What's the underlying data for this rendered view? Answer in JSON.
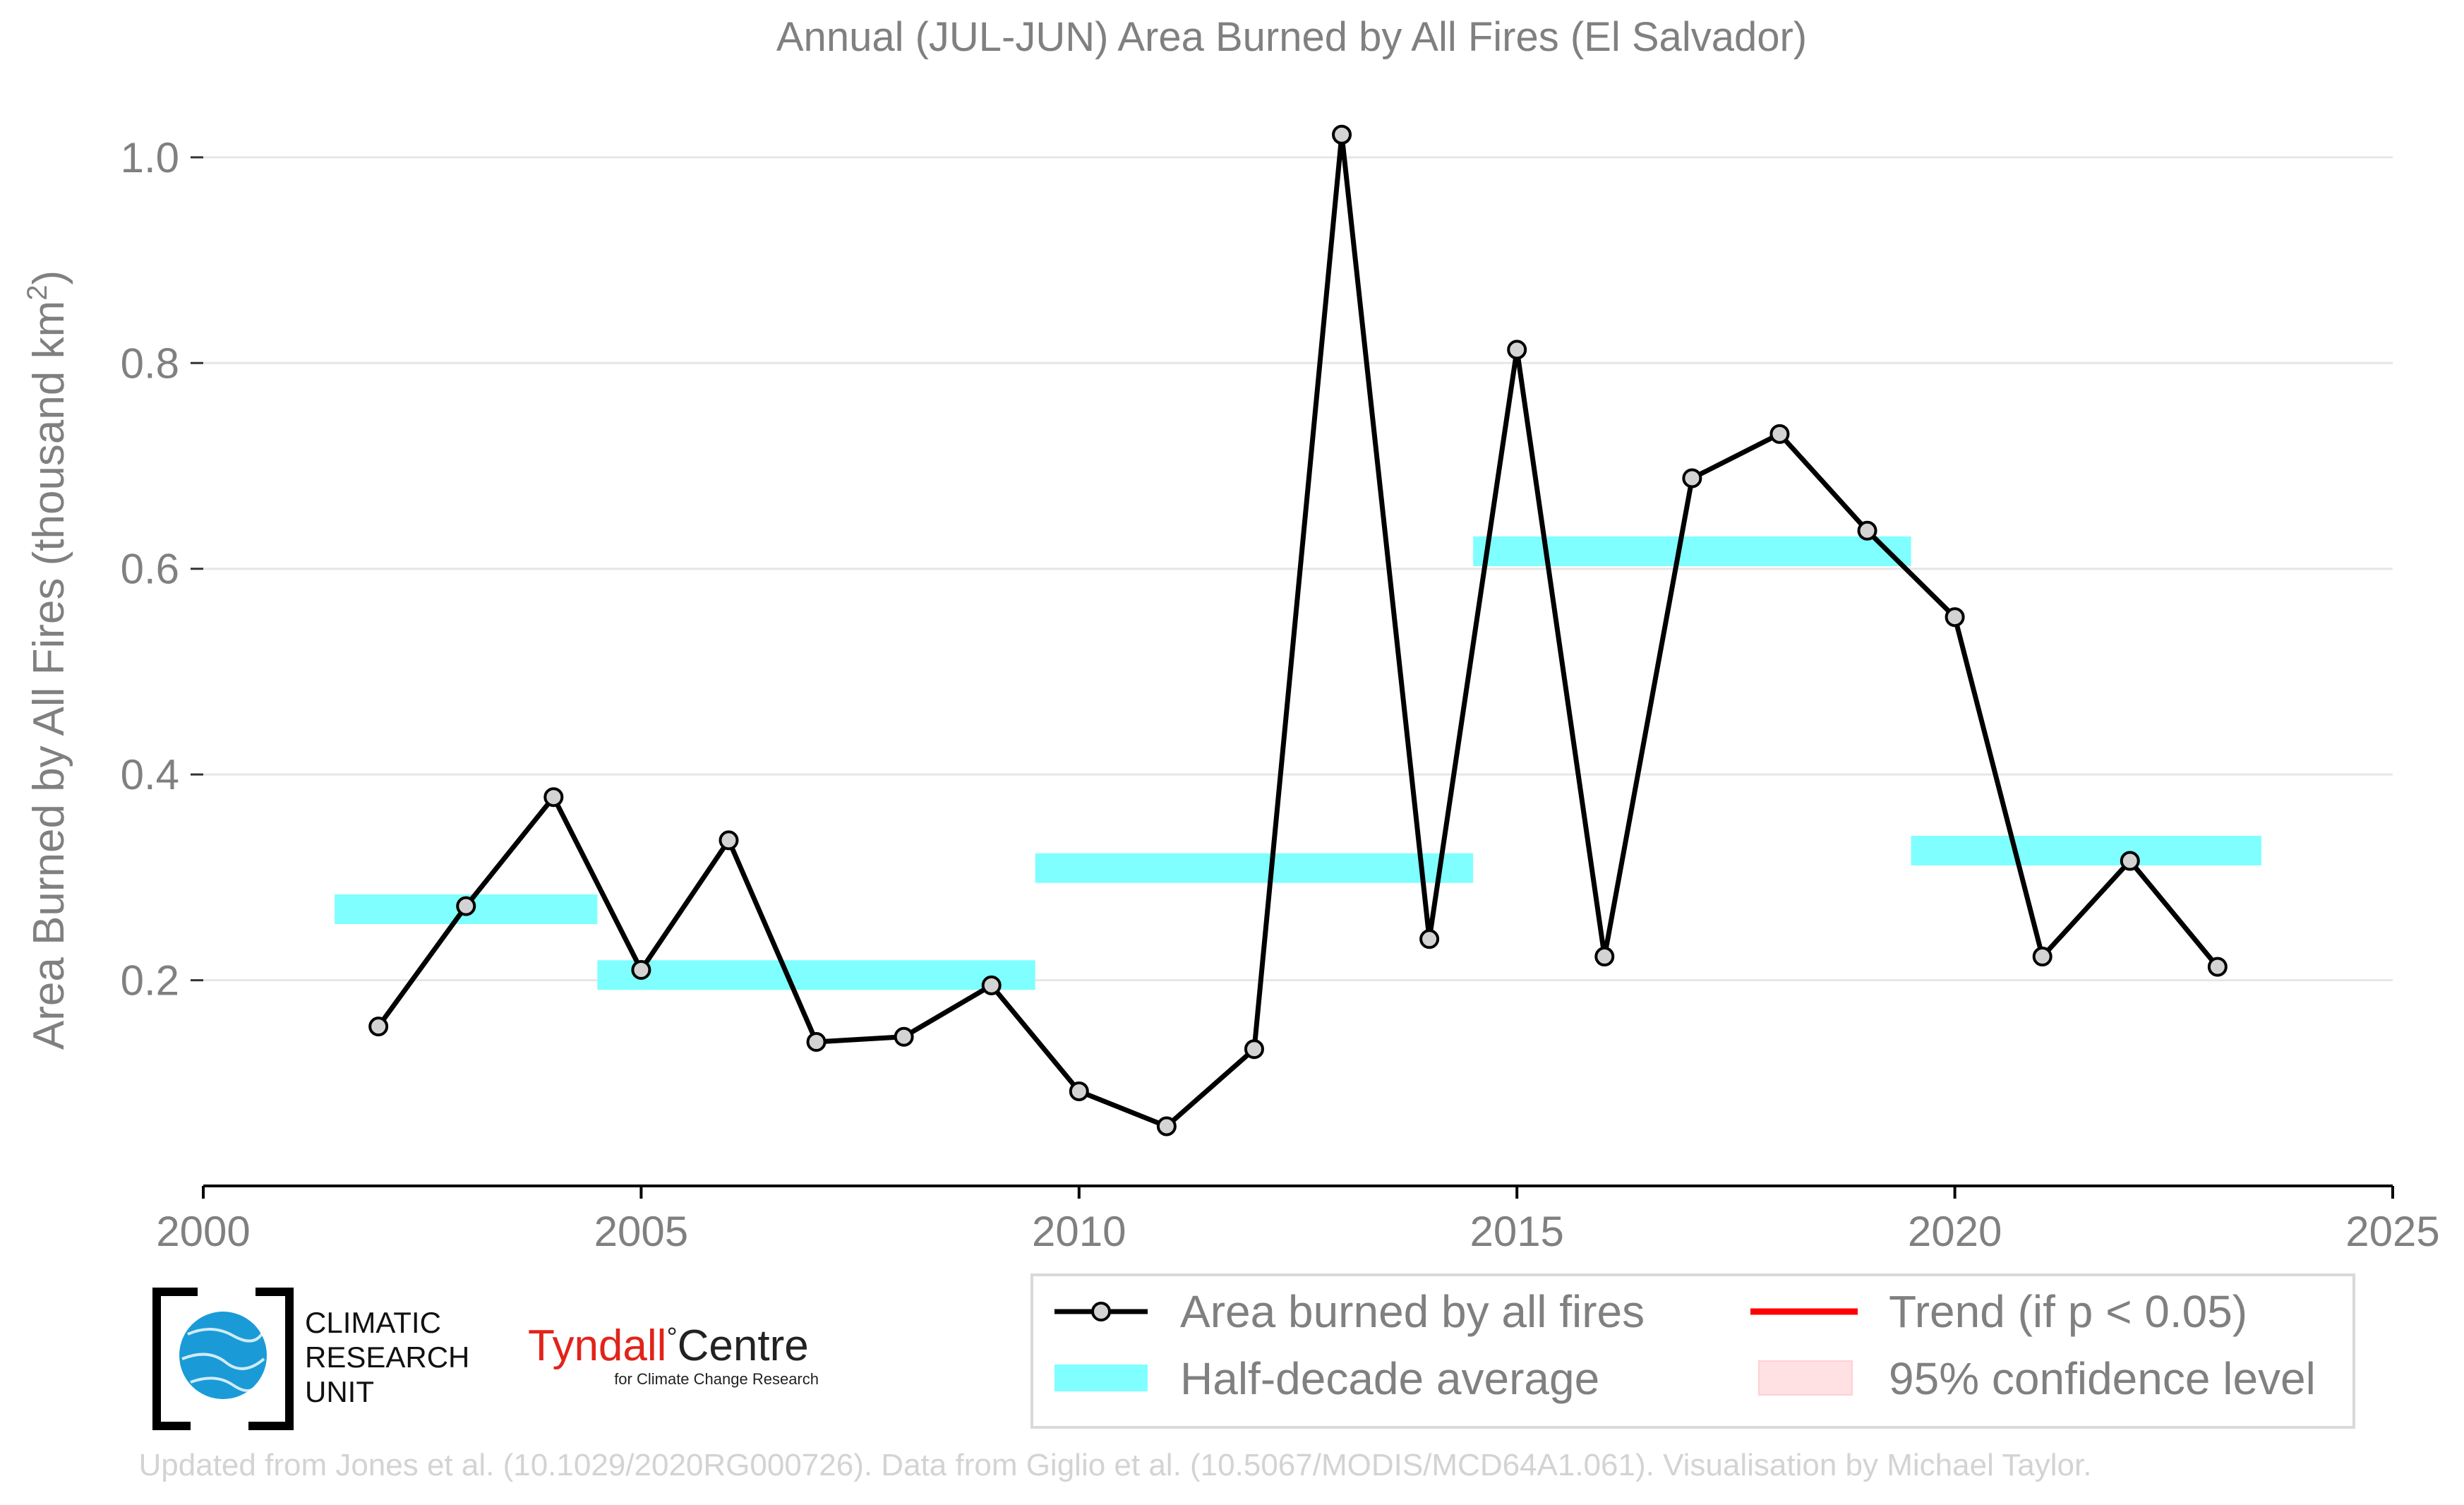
{
  "chart_data": {
    "type": "line",
    "title": "Annual (JUL-JUN) Area Burned by All Fires (El Salvador)",
    "ylabel_main": "Area Burned by All Fires (thousand km",
    "ylabel_sup": "2",
    "ylabel_close": ")",
    "xlim": [
      2000,
      2025
    ],
    "ylim": [
      0.0,
      1.05
    ],
    "x_ticks": [
      2000,
      2005,
      2010,
      2015,
      2020,
      2025
    ],
    "y_ticks": [
      0.2,
      0.4,
      0.6,
      0.8,
      1.0
    ],
    "y_tick_labels": [
      "0.2",
      "0.4",
      "0.6",
      "0.8",
      "1.0"
    ],
    "grid": "horizontal",
    "series": [
      {
        "name": "Area burned by all fires",
        "color": "#000000",
        "marker_fill": "#d3d3d3",
        "x": [
          2002,
          2003,
          2004,
          2005,
          2006,
          2007,
          2008,
          2009,
          2010,
          2011,
          2012,
          2013,
          2014,
          2015,
          2016,
          2017,
          2018,
          2019,
          2020,
          2021,
          2022,
          2023
        ],
        "y": [
          0.155,
          0.272,
          0.378,
          0.21,
          0.336,
          0.14,
          0.145,
          0.195,
          0.092,
          0.058,
          0.133,
          1.022,
          0.24,
          0.813,
          0.223,
          0.688,
          0.731,
          0.637,
          0.553,
          0.223,
          0.316,
          0.213
        ]
      }
    ],
    "half_decade_average": {
      "name": "Half-decade average",
      "color": "#7fffff",
      "segments": [
        {
          "x0": 2001.5,
          "x1": 2004.5,
          "y": 0.269
        },
        {
          "x0": 2004.5,
          "x1": 2009.5,
          "y": 0.205
        },
        {
          "x0": 2009.5,
          "x1": 2014.5,
          "y": 0.309
        },
        {
          "x0": 2014.5,
          "x1": 2019.5,
          "y": 0.617
        },
        {
          "x0": 2019.5,
          "x1": 2023.5,
          "y": 0.326
        }
      ]
    },
    "legend": {
      "placement": "bottom-right",
      "items": [
        {
          "label": "Area burned by all fires",
          "kind": "line-marker",
          "color": "#000000"
        },
        {
          "label": "Trend (if p < 0.05)",
          "kind": "line",
          "color": "#ff0000"
        },
        {
          "label": "Half-decade average",
          "kind": "band",
          "color": "#7fffff"
        },
        {
          "label": "95% confidence level",
          "kind": "band",
          "color": "#ffe0e3"
        }
      ]
    }
  },
  "logos": {
    "cru": {
      "line1": "CLIMATIC",
      "line2": "RESEARCH",
      "line3": "UNIT",
      "globe_color": "#1a9bd7"
    },
    "tyndall": {
      "name_red": "Tyndall",
      "name_degree": "°",
      "name_black": "Centre",
      "tagline": "for Climate Change Research",
      "red_color": "#e2231a"
    }
  },
  "footer": "Updated from Jones et al. (10.1029/2020RG000726). Data from Giglio et al. (10.5067/MODIS/MCD64A1.061). Visualisation by Michael Taylor."
}
